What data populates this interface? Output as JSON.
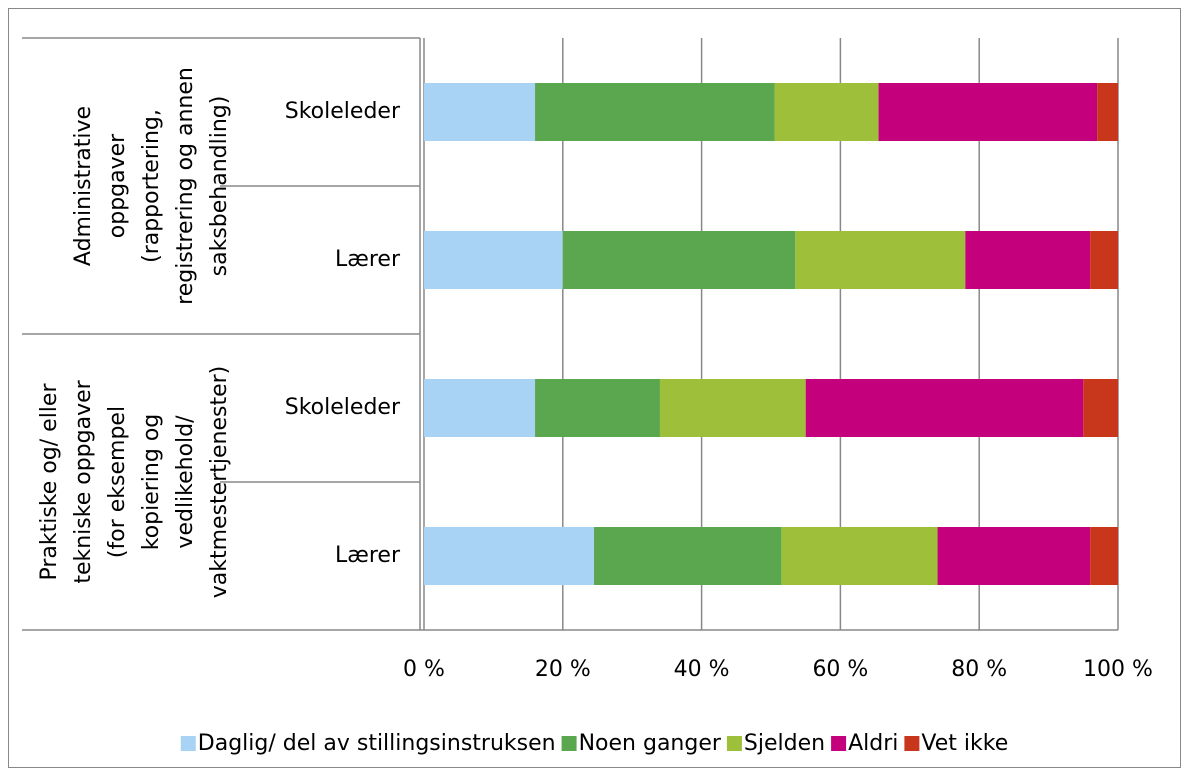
{
  "chart_data": {
    "type": "stacked-bar-horizontal",
    "groups": [
      [
        "Administrative",
        "oppgaver",
        "(rapportering,",
        "registrering og annen",
        "saksbehandling)"
      ],
      [
        "Praktiske og/ eller",
        "tekniske oppgaver",
        "(for eksempel",
        "kopiering og",
        "vedlikehold/",
        "vaktmestertjenester)"
      ]
    ],
    "categories": [
      "Skoleleder",
      "Lærer",
      "Skoleleder",
      "Lærer"
    ],
    "series": [
      {
        "name": "Daglig/ del av stillingsinstruksen",
        "color": "#a9d3f5",
        "values": [
          16,
          20,
          16,
          24.5
        ]
      },
      {
        "name": "Noen ganger",
        "color": "#5ba750",
        "values": [
          34.5,
          33.5,
          18,
          27
        ]
      },
      {
        "name": "Sjelden",
        "color": "#9dbf39",
        "values": [
          15,
          24.5,
          21,
          22.5
        ]
      },
      {
        "name": "Aldri",
        "color": "#c5007c",
        "values": [
          31.5,
          18,
          40,
          22
        ]
      },
      {
        "name": "Vet ikke",
        "color": "#c8371b",
        "values": [
          3,
          4,
          5,
          4
        ]
      }
    ],
    "xlim": [
      0,
      100
    ],
    "xticks": [
      {
        "value": 0,
        "label": "0 %"
      },
      {
        "value": 20,
        "label": "20 %"
      },
      {
        "value": 40,
        "label": "40 %"
      },
      {
        "value": 60,
        "label": "60 %"
      },
      {
        "value": 80,
        "label": "80 %"
      },
      {
        "value": 100,
        "label": "100 %"
      }
    ],
    "grid": true,
    "legend": "bottom"
  }
}
